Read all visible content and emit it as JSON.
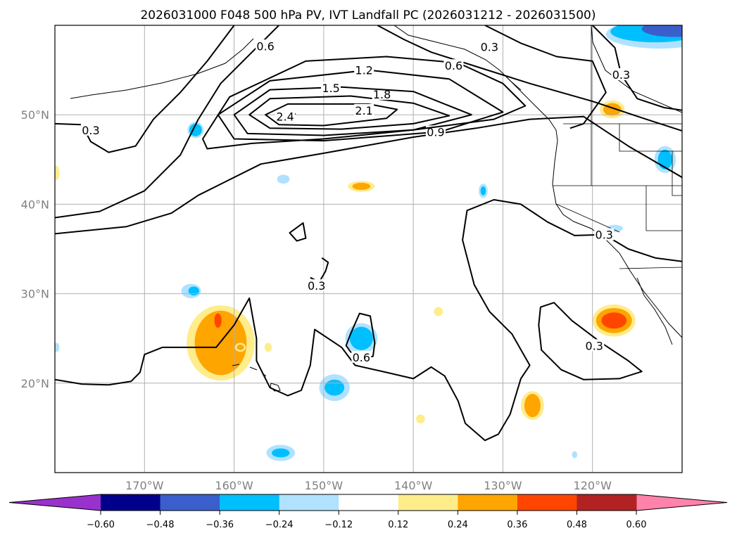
{
  "chart_data": {
    "type": "contour",
    "title": "2026031000 F048 500 hPa PV, IVT Landfall PC (2026031212 - 2026031500)",
    "xlim": [
      -180,
      -110
    ],
    "ylim": [
      10,
      60
    ],
    "grid": true,
    "x_ticks": [
      {
        "value": -170,
        "label": "170°W"
      },
      {
        "value": -160,
        "label": "160°W"
      },
      {
        "value": -150,
        "label": "150°W"
      },
      {
        "value": -140,
        "label": "140°W"
      },
      {
        "value": -130,
        "label": "130°W"
      },
      {
        "value": -120,
        "label": "120°W"
      }
    ],
    "y_ticks": [
      {
        "value": 50,
        "label": "50°N"
      },
      {
        "value": 40,
        "label": "40°N"
      },
      {
        "value": 30,
        "label": "30°N"
      },
      {
        "value": 20,
        "label": "20°N"
      }
    ],
    "colorbar": {
      "orientation": "horizontal",
      "extend": "both",
      "under_color": "#9932cc",
      "over_color": "#ff82ab",
      "boundaries": [
        -0.6,
        -0.48,
        -0.36,
        -0.24,
        -0.12,
        0.12,
        0.24,
        0.36,
        0.48,
        0.6
      ],
      "colors": [
        "#00008b",
        "#3a5fcd",
        "#00bfff",
        "#b0e2ff",
        "#ffffff",
        "#ffec8b",
        "#ffa500",
        "#ff4500",
        "#b22222"
      ],
      "tick_labels": [
        "−0.60",
        "−0.48",
        "−0.36",
        "−0.24",
        "−0.12",
        "0.12",
        "0.24",
        "0.36",
        "0.48",
        "0.60"
      ]
    },
    "contours": [
      {
        "level": "2.4",
        "closed": true,
        "label_at": [
          -154.3,
          49.8
        ],
        "points": [
          [
            -155,
            50
          ],
          [
            -154.2,
            50.3
          ],
          [
            -153.2,
            50.1
          ],
          [
            -154.2,
            49.8
          ]
        ]
      },
      {
        "level": "2.1",
        "closed": true,
        "label_at": [
          -145.5,
          50.5
        ],
        "points": [
          [
            -156.5,
            50
          ],
          [
            -154,
            51.2
          ],
          [
            -145,
            51.2
          ],
          [
            -141.8,
            50.6
          ],
          [
            -143,
            49.6
          ],
          [
            -150,
            48.8
          ],
          [
            -155,
            48.9
          ]
        ]
      },
      {
        "level": "1.8",
        "closed": true,
        "label_at": [
          -143.5,
          52.3
        ],
        "points": [
          [
            -158.3,
            50
          ],
          [
            -156,
            51.8
          ],
          [
            -147,
            52.1
          ],
          [
            -140,
            51.3
          ],
          [
            -136,
            49.9
          ],
          [
            -140,
            49
          ],
          [
            -148,
            48.4
          ],
          [
            -156,
            48.5
          ]
        ]
      },
      {
        "level": "1.5",
        "closed": true,
        "label_at": [
          -149.2,
          53.0
        ],
        "points": [
          [
            -160,
            50
          ],
          [
            -156,
            52.8
          ],
          [
            -148,
            53.1
          ],
          [
            -140,
            52.6
          ],
          [
            -133.5,
            50
          ],
          [
            -140,
            48.3
          ],
          [
            -150,
            47.7
          ],
          [
            -158.5,
            47.9
          ]
        ]
      },
      {
        "level": "1.2",
        "closed": true,
        "label_at": [
          -145.5,
          55.0
        ],
        "points": [
          [
            -161.8,
            50
          ],
          [
            -156,
            53.8
          ],
          [
            -145,
            55
          ],
          [
            -136,
            54
          ],
          [
            -130,
            50.3
          ],
          [
            -137,
            48.1
          ],
          [
            -150,
            47.1
          ],
          [
            -160,
            47.3
          ]
        ]
      },
      {
        "level": "0.9",
        "closed": false,
        "label_at": [
          -137.5,
          48.1
        ],
        "points": [
          [
            -180,
            36.7
          ],
          [
            -172,
            37.5
          ],
          [
            -167,
            39
          ],
          [
            -164,
            41
          ],
          [
            -161,
            42.5
          ],
          [
            -157,
            44.5
          ],
          [
            -150,
            45.7
          ],
          [
            -140,
            47.5
          ],
          [
            -133,
            48.5
          ],
          [
            -127,
            49.5
          ],
          [
            -121,
            49.8
          ],
          [
            -116,
            46.5
          ],
          [
            -110,
            43
          ]
        ]
      },
      {
        "level": "0.9",
        "closed": true,
        "label_at": null,
        "points": [
          [
            -163.5,
            47.3
          ],
          [
            -160.5,
            52
          ],
          [
            -152,
            56
          ],
          [
            -143,
            56.5
          ],
          [
            -135,
            55.8
          ],
          [
            -130,
            53.5
          ],
          [
            -127.5,
            51
          ],
          [
            -131,
            49.5
          ],
          [
            -140,
            48.3
          ],
          [
            -150,
            47.3
          ],
          [
            -158,
            46.8
          ],
          [
            -163,
            46.2
          ]
        ]
      },
      {
        "level": "0.6",
        "closed": false,
        "label_at": [
          -156.5,
          57.7
        ],
        "points": [
          [
            -180,
            38.5
          ],
          [
            -175,
            39.2
          ],
          [
            -170,
            41.5
          ],
          [
            -166,
            45.5
          ],
          [
            -164,
            49.5
          ],
          [
            -161.5,
            53.5
          ],
          [
            -158,
            57
          ],
          [
            -155,
            60
          ]
        ]
      },
      {
        "level": "0.6",
        "closed": false,
        "label_at": [
          -135.5,
          55.5
        ],
        "points": [
          [
            -144,
            60
          ],
          [
            -141,
            58.4
          ],
          [
            -138,
            57
          ],
          [
            -133,
            55.4
          ],
          [
            -127,
            53.5
          ],
          [
            -120,
            51.5
          ],
          [
            -114,
            49.5
          ],
          [
            -110,
            48.2
          ]
        ]
      },
      {
        "level": "0.3",
        "closed": false,
        "label_at": [
          -176,
          48.3
        ],
        "points": [
          [
            -180,
            49
          ],
          [
            -177,
            48.9
          ],
          [
            -176,
            47
          ],
          [
            -174,
            45.8
          ],
          [
            -171,
            46.5
          ],
          [
            -169,
            49.5
          ],
          [
            -166,
            52.5
          ],
          [
            -163,
            56
          ],
          [
            -160,
            60
          ]
        ]
      },
      {
        "level": "0.3",
        "closed": false,
        "label_at": [
          -131.5,
          57.6
        ],
        "points": [
          [
            -132,
            60
          ],
          [
            -128,
            58
          ],
          [
            -124,
            56.5
          ],
          [
            -120,
            56
          ],
          [
            -118.5,
            52.5
          ],
          [
            -121,
            49
          ],
          [
            -122.5,
            48.5
          ]
        ]
      },
      {
        "level": "0.3",
        "closed": false,
        "label_at": [
          -116.8,
          54.5
        ],
        "points": [
          [
            -120,
            60
          ],
          [
            -117.5,
            57.5
          ],
          [
            -116.8,
            54.5
          ],
          [
            -115,
            51.8
          ],
          [
            -112,
            50.8
          ],
          [
            -110,
            50.5
          ]
        ]
      },
      {
        "level": "0.3",
        "closed": false,
        "label_at": [
          -118.7,
          36.6
        ],
        "points": [
          [
            -180,
            20.4
          ],
          [
            -177,
            19.9
          ],
          [
            -174,
            19.8
          ],
          [
            -171.5,
            20.2
          ],
          [
            -170.5,
            21.2
          ],
          [
            -170,
            23.2
          ],
          [
            -168,
            24
          ],
          [
            -162,
            24
          ],
          [
            -160,
            26.5
          ],
          [
            -158.3,
            29.5
          ],
          [
            -157.5,
            25
          ],
          [
            -157.5,
            22.5
          ],
          [
            -156,
            19.5
          ],
          [
            -154,
            18.6
          ],
          [
            -152.5,
            19.2
          ],
          [
            -151.5,
            22
          ],
          [
            -151,
            26
          ],
          [
            -148,
            24
          ],
          [
            -146.5,
            22
          ],
          [
            -143,
            21.2
          ],
          [
            -140,
            20.5
          ],
          [
            -138,
            21.8
          ],
          [
            -136.5,
            20.8
          ],
          [
            -135,
            18
          ],
          [
            -134.2,
            15.5
          ],
          [
            -132,
            13.6
          ],
          [
            -130.5,
            14.3
          ],
          [
            -129.2,
            16.5
          ],
          [
            -128,
            20.5
          ],
          [
            -127,
            22
          ],
          [
            -129,
            25.5
          ],
          [
            -131.5,
            28
          ],
          [
            -133.2,
            31
          ],
          [
            -134.5,
            36
          ],
          [
            -134,
            39.3
          ],
          [
            -131,
            40.5
          ],
          [
            -128,
            40
          ],
          [
            -125,
            38
          ],
          [
            -122,
            36.5
          ],
          [
            -118.7,
            36.6
          ],
          [
            -116,
            35
          ],
          [
            -113,
            34
          ],
          [
            -110,
            33.6
          ]
        ]
      },
      {
        "level": "0.3",
        "closed": true,
        "label_at": [
          -119.8,
          24.2
        ],
        "points": [
          [
            -125.8,
            28.5
          ],
          [
            -124.3,
            29
          ],
          [
            -122.3,
            27
          ],
          [
            -119,
            24.5
          ],
          [
            -116,
            22.5
          ],
          [
            -114.5,
            21.3
          ],
          [
            -117,
            20.5
          ],
          [
            -121,
            20.4
          ],
          [
            -123.5,
            21.5
          ],
          [
            -125.7,
            23.7
          ],
          [
            -126,
            26.5
          ]
        ]
      },
      {
        "level": "0.3",
        "closed": false,
        "label_at": [
          -150.8,
          30.9
        ],
        "points": [
          [
            -151.5,
            31.8
          ],
          [
            -150.5,
            31.3
          ],
          [
            -149.8,
            32.5
          ],
          [
            -149.5,
            33.5
          ],
          [
            -150.2,
            34
          ]
        ]
      },
      {
        "level": "0.3",
        "closed": true,
        "label_at": null,
        "points": [
          [
            -153.8,
            36.8
          ],
          [
            -152.3,
            37.9
          ],
          [
            -152,
            36.2
          ],
          [
            -153,
            35.9
          ]
        ]
      },
      {
        "level": "0.6",
        "closed": true,
        "label_at": [
          -145.8,
          22.9
        ],
        "points": [
          [
            -147.5,
            24.2
          ],
          [
            -147,
            25.5
          ],
          [
            -146,
            27.8
          ],
          [
            -144.8,
            27.5
          ],
          [
            -144.3,
            24.5
          ],
          [
            -144.5,
            23
          ],
          [
            -145.5,
            22.8
          ],
          [
            -147,
            23.5
          ]
        ]
      }
    ],
    "shaded_regions": [
      {
        "color": "#ffec8b",
        "lon": -161.5,
        "lat": 24.5,
        "rlon": 3.8,
        "rlat": 4.2
      },
      {
        "color": "#ffa500",
        "lon": -161.5,
        "lat": 24.5,
        "rlon": 2.9,
        "rlat": 3.6
      },
      {
        "color": "#ff4500",
        "lon": -161.8,
        "lat": 27.0,
        "rlon": 0.4,
        "rlat": 0.8
      },
      {
        "color": "#ffec8b",
        "lon": -117.6,
        "lat": 27.0,
        "rlon": 2.4,
        "rlat": 1.8
      },
      {
        "color": "#ffa500",
        "lon": -117.6,
        "lat": 27.0,
        "rlon": 2.0,
        "rlat": 1.4
      },
      {
        "color": "#ff4500",
        "lon": -117.6,
        "lat": 27.0,
        "rlon": 1.4,
        "rlat": 0.9
      },
      {
        "color": "#ffec8b",
        "lon": -126.7,
        "lat": 17.5,
        "rlon": 1.3,
        "rlat": 1.6
      },
      {
        "color": "#ffa500",
        "lon": -126.7,
        "lat": 17.5,
        "rlon": 0.9,
        "rlat": 1.3
      },
      {
        "color": "#ffec8b",
        "lon": -145.8,
        "lat": 42.0,
        "rlon": 1.5,
        "rlat": 0.6
      },
      {
        "color": "#ffa500",
        "lon": -145.8,
        "lat": 42.0,
        "rlon": 1.0,
        "rlat": 0.4
      },
      {
        "color": "#ffec8b",
        "lon": -117.8,
        "lat": 50.6,
        "rlon": 1.4,
        "rlat": 1.0
      },
      {
        "color": "#ffa500",
        "lon": -117.8,
        "lat": 50.6,
        "rlon": 1.0,
        "rlat": 0.7
      },
      {
        "color": "#ffec8b",
        "lon": -159.3,
        "lat": 24.0,
        "rlon": 0.6,
        "rlat": 0.5
      },
      {
        "color": "#ffa500",
        "lon": -159.3,
        "lat": 24.0,
        "rlon": 0.4,
        "rlat": 0.3
      },
      {
        "color": "#ffec8b",
        "lon": -137.2,
        "lat": 28.0,
        "rlon": 0.5,
        "rlat": 0.5
      },
      {
        "color": "#ffec8b",
        "lon": -139.2,
        "lat": 16.0,
        "rlon": 0.5,
        "rlat": 0.5
      },
      {
        "color": "#ffec8b",
        "lon": -156.2,
        "lat": 24.0,
        "rlon": 0.4,
        "rlat": 0.5
      },
      {
        "color": "#ffec8b",
        "lon": -179.8,
        "lat": 43.5,
        "rlon": 0.3,
        "rlat": 0.8
      },
      {
        "color": "#b0e2ff",
        "lon": -145.8,
        "lat": 25.0,
        "rlon": 1.8,
        "rlat": 1.7
      },
      {
        "color": "#00bfff",
        "lon": -145.8,
        "lat": 25.0,
        "rlon": 1.3,
        "rlat": 1.3
      },
      {
        "color": "#b0e2ff",
        "lon": -148.8,
        "lat": 19.5,
        "rlon": 1.7,
        "rlat": 1.5
      },
      {
        "color": "#00bfff",
        "lon": -148.8,
        "lat": 19.5,
        "rlon": 1.1,
        "rlat": 0.9
      },
      {
        "color": "#b0e2ff",
        "lon": -154.8,
        "lat": 12.2,
        "rlon": 1.6,
        "rlat": 0.9
      },
      {
        "color": "#00bfff",
        "lon": -154.8,
        "lat": 12.2,
        "rlon": 1.0,
        "rlat": 0.5
      },
      {
        "color": "#b0e2ff",
        "lon": -164.3,
        "lat": 48.3,
        "rlon": 0.9,
        "rlat": 0.9
      },
      {
        "color": "#00bfff",
        "lon": -164.3,
        "lat": 48.3,
        "rlon": 0.7,
        "rlat": 0.7
      },
      {
        "color": "#b0e2ff",
        "lon": -164.8,
        "lat": 30.3,
        "rlon": 1.1,
        "rlat": 0.8
      },
      {
        "color": "#00bfff",
        "lon": -164.5,
        "lat": 30.3,
        "rlon": 0.6,
        "rlat": 0.5
      },
      {
        "color": "#b0e2ff",
        "lon": -111.9,
        "lat": 45.0,
        "rlon": 1.2,
        "rlat": 1.5
      },
      {
        "color": "#00bfff",
        "lon": -111.9,
        "lat": 45.0,
        "rlon": 0.8,
        "rlat": 1.1
      },
      {
        "color": "#b0e2ff",
        "lon": -132.2,
        "lat": 41.5,
        "rlon": 0.5,
        "rlat": 0.8
      },
      {
        "color": "#00bfff",
        "lon": -132.2,
        "lat": 41.5,
        "rlon": 0.3,
        "rlat": 0.5
      },
      {
        "color": "#b0e2ff",
        "lon": -117.5,
        "lat": 37.3,
        "rlon": 0.9,
        "rlat": 0.4
      },
      {
        "color": "#b0e2ff",
        "lon": -154.5,
        "lat": 42.8,
        "rlon": 0.7,
        "rlat": 0.5
      },
      {
        "color": "#b0e2ff",
        "lon": -122.0,
        "lat": 12.0,
        "rlon": 0.3,
        "rlat": 0.4
      },
      {
        "color": "#b0e2ff",
        "lon": -179.8,
        "lat": 24.0,
        "rlon": 0.3,
        "rlat": 0.5
      },
      {
        "color": "#b0e2ff",
        "lon": -112.5,
        "lat": 59.0,
        "rlon": 6.0,
        "rlat": 1.6
      },
      {
        "color": "#00bfff",
        "lon": -113.0,
        "lat": 59.3,
        "rlon": 5.0,
        "rlat": 1.2
      },
      {
        "color": "#3a5fcd",
        "lon": -111.0,
        "lat": 59.6,
        "rlon": 3.5,
        "rlat": 0.9
      }
    ]
  }
}
